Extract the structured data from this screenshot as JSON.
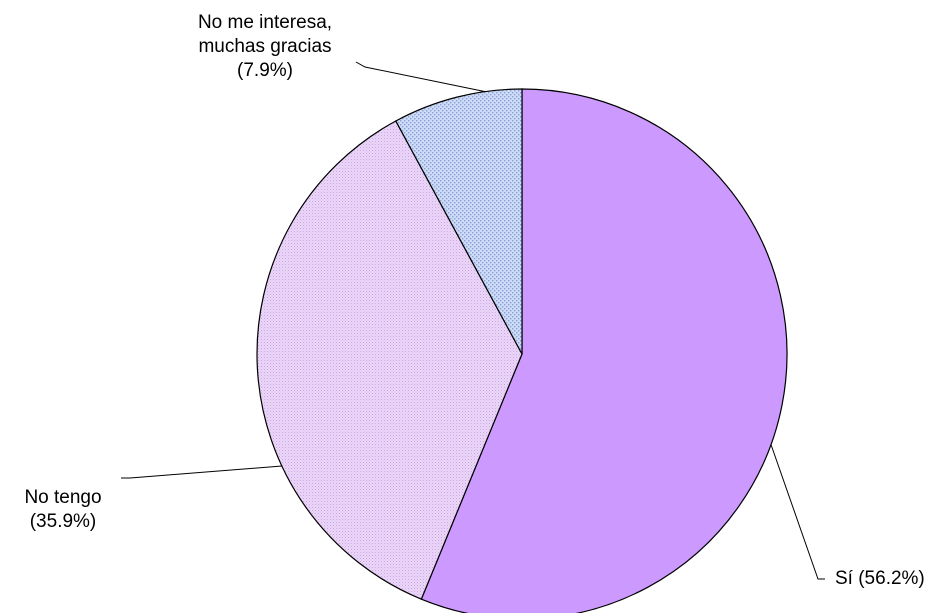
{
  "chart_data": {
    "type": "pie",
    "slices": [
      {
        "label_lines": [
          "Sí (56.2%)"
        ],
        "value": 56.2,
        "fill": "#cc99ff",
        "pattern": "solid"
      },
      {
        "label_lines": [
          "No tengo",
          "(35.9%)"
        ],
        "value": 35.9,
        "fill": "#e6ccf5",
        "pattern": "fine-dots"
      },
      {
        "label_lines": [
          "No me interesa,",
          "muchas gracias",
          "(7.9%)"
        ],
        "value": 7.9,
        "fill": "#c4d4f5",
        "pattern": "dots"
      }
    ],
    "start_angle_deg": 0,
    "direction": "clockwise",
    "legend": "none",
    "title": ""
  }
}
